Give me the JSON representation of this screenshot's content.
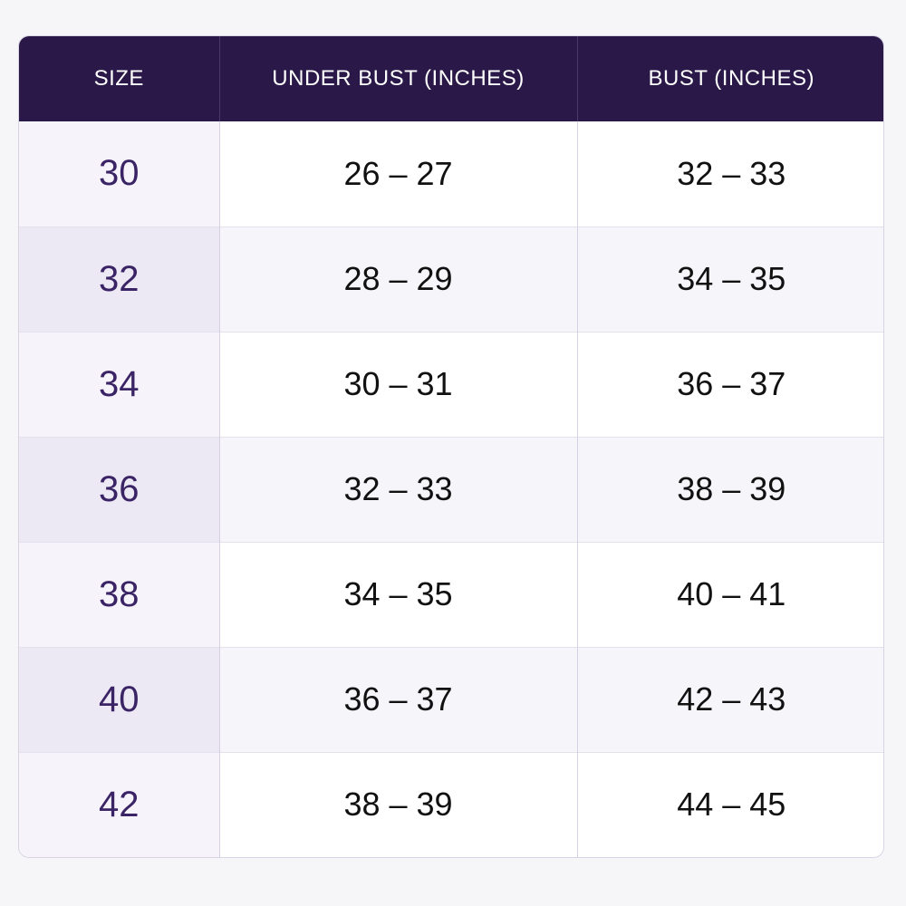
{
  "table": {
    "headers": [
      "SIZE",
      "UNDER BUST (INCHES)",
      "BUST (INCHES)"
    ],
    "rows": [
      {
        "size": "30",
        "under_bust": "26 – 27",
        "bust": "32 – 33"
      },
      {
        "size": "32",
        "under_bust": "28 – 29",
        "bust": "34 – 35"
      },
      {
        "size": "34",
        "under_bust": "30 – 31",
        "bust": "36 – 37"
      },
      {
        "size": "36",
        "under_bust": "32 – 33",
        "bust": "38 – 39"
      },
      {
        "size": "38",
        "under_bust": "34 – 35",
        "bust": "40 – 41"
      },
      {
        "size": "40",
        "under_bust": "36 – 37",
        "bust": "42 – 43"
      },
      {
        "size": "42",
        "under_bust": "38 – 39",
        "bust": "44 – 45"
      }
    ]
  },
  "colors": {
    "header_bg": "#2a1848",
    "size_text": "#3b2466"
  }
}
